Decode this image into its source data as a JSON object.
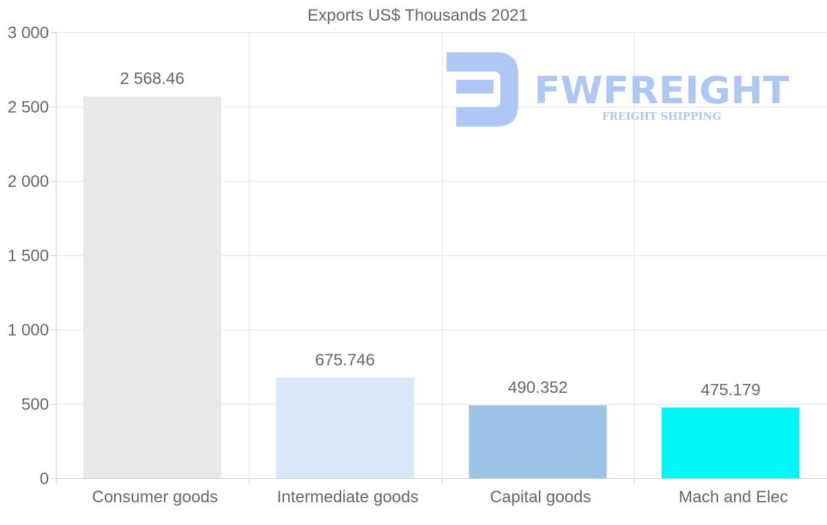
{
  "chart_data": {
    "type": "bar",
    "title": "Exports US$ Thousands 2021",
    "categories": [
      "Consumer goods",
      "Intermediate goods",
      "Capital goods",
      "Mach and Elec"
    ],
    "values": [
      2568.46,
      675.746,
      490.352,
      475.179
    ],
    "value_labels": [
      "2 568.46",
      "675.746",
      "490.352",
      "475.179"
    ],
    "bar_colors": [
      "#e8e8e8",
      "#d8e8f8",
      "#9bc4e7",
      "#00f5f5"
    ],
    "ylim": [
      0,
      3000
    ],
    "yticks": [
      0,
      500,
      1000,
      1500,
      2000,
      2500,
      3000
    ],
    "ytick_labels": [
      "0",
      "500",
      "1 000",
      "1 500",
      "2 000",
      "2 500",
      "3 000"
    ],
    "xlabel": "",
    "ylabel": "",
    "grid": true,
    "legend": "none"
  },
  "watermark": {
    "brand": "FWFREIGHT",
    "tagline": "FREIGHT SHIPPING",
    "icon": "fw-logo-icon",
    "color": "#aac6f3"
  }
}
